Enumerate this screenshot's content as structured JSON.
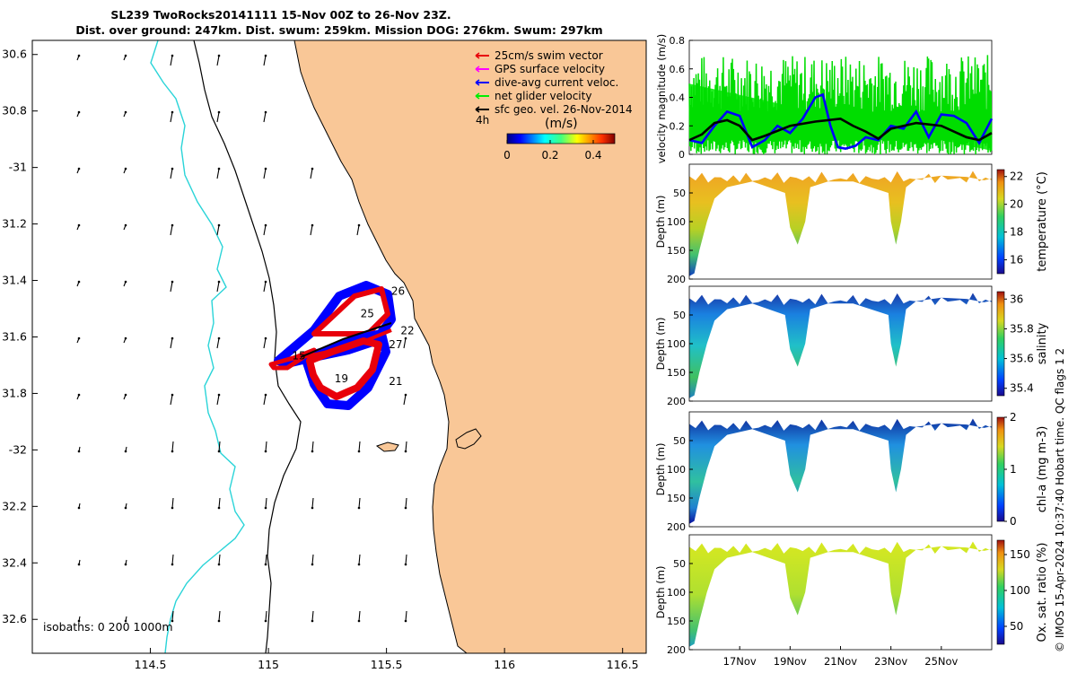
{
  "header": {
    "title": "SL239 TwoRocks20141111 15-Nov 00Z to 26-Nov 23Z.",
    "subtitle": "Dist. over ground: 247km. Dist. swum: 259km. Mission DOG: 276km. Swum: 297km"
  },
  "colors": {
    "land": "#f9c797",
    "swim": "#e8000b",
    "gps": "#ff00ff",
    "dac": "#0000ff",
    "net": "#00ee00",
    "geo": "#000000",
    "isobath200": "#000000",
    "isobath1000": "#2ad4d8"
  },
  "chart_data": [
    {
      "type": "map",
      "title": "SL239 TwoRocks20141111 15-Nov 00Z to 26-Nov 23Z.",
      "xlim": [
        114.0,
        116.6
      ],
      "ylim": [
        -32.72,
        -30.55
      ],
      "x_ticks": [
        114.5,
        115,
        115.5,
        116,
        116.5
      ],
      "x_tick_labels": [
        "114.5",
        "115",
        "115.5",
        "116",
        "116.5"
      ],
      "y_ticks": [
        -30.6,
        -30.8,
        -31.0,
        -31.2,
        -31.4,
        -31.6,
        -31.8,
        -32.0,
        -32.2,
        -32.4,
        -32.6
      ],
      "y_tick_labels": [
        "30.6",
        "30.8",
        "-31",
        "31.2",
        "31.4",
        "31.6",
        "31.8",
        "-32",
        "32.2",
        "32.4",
        "32.6"
      ],
      "legend": [
        {
          "label": "25cm/s swim vector",
          "color": "#e8000b"
        },
        {
          "label": "GPS surface velocity",
          "color": "#ff00ff"
        },
        {
          "label": "dive-avg current veloc.",
          "color": "#0000ff"
        },
        {
          "label": "net glider velocity",
          "color": "#00ee00"
        },
        {
          "label": "sfc geo. vel. 26-Nov-2014",
          "color": "#000000"
        }
      ],
      "legend_position": "top-right",
      "scale_label": "4h",
      "colorbar": {
        "label": "(m/s)",
        "ticks": [
          0,
          0.2,
          0.4
        ],
        "tick_labels": [
          "0",
          "0.2",
          "0.4"
        ],
        "range": [
          0,
          0.5
        ]
      },
      "day_labels": [
        {
          "label": "26",
          "lon": 115.52,
          "lat": -31.45
        },
        {
          "label": "25",
          "lon": 115.39,
          "lat": -31.53
        },
        {
          "label": "22",
          "lon": 115.56,
          "lat": -31.59
        },
        {
          "label": "27",
          "lon": 115.51,
          "lat": -31.64
        },
        {
          "label": "15",
          "lon": 115.1,
          "lat": -31.68
        },
        {
          "label": "19",
          "lon": 115.28,
          "lat": -31.76
        },
        {
          "label": "21",
          "lon": 115.51,
          "lat": -31.77
        }
      ],
      "isobaths_label": "isobaths: 0   200  1000m",
      "isobaths": [
        0,
        200,
        1000
      ]
    },
    {
      "type": "line",
      "ylabel": "velocity magnitude (m/s)",
      "ylim": [
        0,
        0.8
      ],
      "y_ticks": [
        0,
        0.2,
        0.4,
        0.6,
        0.8
      ],
      "y_tick_labels": [
        "0",
        "0.2",
        "0.4",
        "0.6",
        "0.8"
      ],
      "xlim_days": [
        15,
        27
      ],
      "series": [
        {
          "name": "dive-avg current veloc.",
          "color": "#0000ff",
          "x": [
            15.0,
            15.5,
            16.0,
            16.5,
            17.0,
            17.5,
            18.0,
            18.5,
            19.0,
            19.5,
            20.0,
            20.3,
            20.6,
            20.9,
            21.2,
            21.6,
            22.0,
            22.5,
            23.0,
            23.5,
            24.0,
            24.5,
            25.0,
            25.5,
            26.0,
            26.5,
            27.0
          ],
          "y": [
            0.1,
            0.08,
            0.2,
            0.3,
            0.27,
            0.05,
            0.1,
            0.2,
            0.15,
            0.25,
            0.4,
            0.42,
            0.2,
            0.05,
            0.04,
            0.06,
            0.12,
            0.1,
            0.2,
            0.18,
            0.3,
            0.12,
            0.28,
            0.27,
            0.22,
            0.08,
            0.25
          ]
        },
        {
          "name": "sfc geo. vel.",
          "color": "#000000",
          "x": [
            15.0,
            15.5,
            16.0,
            16.5,
            17.0,
            17.5,
            18.0,
            19.0,
            20.0,
            20.5,
            21.0,
            21.5,
            22.0,
            22.5,
            23.0,
            24.0,
            25.0,
            26.0,
            26.5,
            27.0
          ],
          "y": [
            0.1,
            0.14,
            0.22,
            0.24,
            0.2,
            0.1,
            0.13,
            0.2,
            0.23,
            0.24,
            0.25,
            0.2,
            0.16,
            0.11,
            0.18,
            0.22,
            0.2,
            0.12,
            0.1,
            0.15
          ]
        }
      ],
      "net_glider_velocity_envelope": {
        "color": "#00ee00",
        "upper_range": [
          0.3,
          0.7
        ],
        "lower_range": [
          0.0,
          0.1
        ]
      }
    },
    {
      "type": "heatmap",
      "ylabel": "Depth (m)",
      "y_tick_labels": [
        "50",
        "100",
        "150",
        "200"
      ],
      "colorbar_label": "temperature (°C)",
      "colorbar_ticks": [
        "16",
        "18",
        "20",
        "22"
      ],
      "colorbar_range": [
        15,
        22.5
      ]
    },
    {
      "type": "heatmap",
      "ylabel": "Depth (m)",
      "y_tick_labels": [
        "50",
        "100",
        "150",
        "200"
      ],
      "colorbar_label": "salinity",
      "colorbar_ticks": [
        "35.4",
        "35.6",
        "35.8",
        "36"
      ],
      "colorbar_range": [
        35.35,
        36.05
      ]
    },
    {
      "type": "heatmap",
      "ylabel": "Depth (m)",
      "y_tick_labels": [
        "50",
        "100",
        "150",
        "200"
      ],
      "colorbar_label": "chl-a (mg m-3)",
      "colorbar_ticks": [
        "0",
        "1",
        "2"
      ],
      "colorbar_range": [
        0,
        2
      ]
    },
    {
      "type": "heatmap",
      "ylabel": "Depth (m)",
      "y_tick_labels": [
        "50",
        "100",
        "150",
        "200"
      ],
      "colorbar_label": "Ox. sat. ratio (%)",
      "colorbar_ticks": [
        "50",
        "100",
        "150"
      ],
      "colorbar_range": [
        25,
        170
      ],
      "x_tick_labels": [
        "17Nov",
        "19Nov",
        "21Nov",
        "23Nov",
        "25Nov"
      ]
    }
  ],
  "side_note": "© IMOS 15-Apr-2024 10:37:40 Hobart time. QC flags 1  2"
}
